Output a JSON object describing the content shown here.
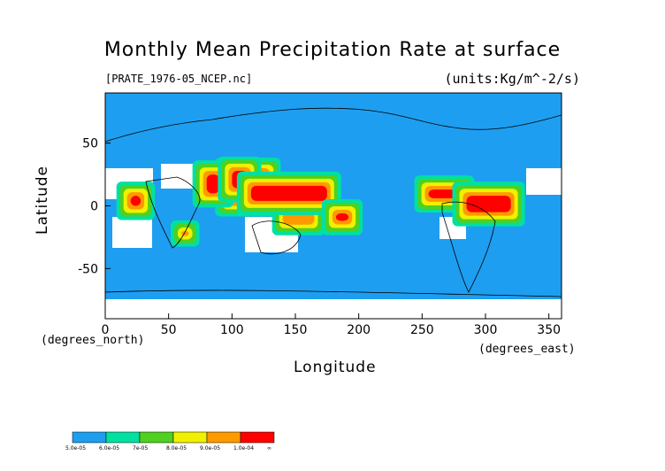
{
  "chart_data": {
    "type": "heatmap",
    "title": "Monthly Mean Precipitation Rate at surface",
    "subtitle": "[PRATE_1976-05_NCEP.nc]",
    "units": "(units:Kg/m^-2/s)",
    "xlabel": "Longitude",
    "ylabel": "Latitude",
    "x_unit_label": "(degrees_east)",
    "y_unit_label": "(degrees_north)",
    "xlim": [
      0,
      360
    ],
    "ylim": [
      -90,
      90
    ],
    "x_ticks": [
      0,
      50,
      100,
      150,
      200,
      250,
      300,
      350
    ],
    "y_ticks": [
      50,
      0,
      -50
    ],
    "x_tick_labels": [
      "0",
      "50",
      "100",
      "150",
      "200",
      "250",
      "300",
      "350"
    ],
    "y_tick_labels": [
      "50",
      "0",
      "-50"
    ],
    "colorbar": {
      "labels": [
        "5.0e-05",
        "6.0e-05",
        "7e-05",
        "8.0e-05",
        "9.0e-05",
        "1.0e-04",
        "∞"
      ],
      "colors": [
        "#1e9ef0",
        "#00e0a0",
        "#50d020",
        "#f0f000",
        "#ff9900",
        "#ff0000"
      ],
      "bounds": [
        5e-05,
        6e-05,
        7e-05,
        8e-05,
        9e-05,
        0.0001
      ]
    },
    "regions": [
      {
        "level": 5,
        "lon": [
          80,
          90
        ],
        "lat": [
          10,
          25
        ]
      },
      {
        "level": 5,
        "lon": [
          100,
          112
        ],
        "lat": [
          14,
          28
        ]
      },
      {
        "level": 5,
        "lon": [
          115,
          175
        ],
        "lat": [
          4,
          16
        ]
      },
      {
        "level": 5,
        "lon": [
          255,
          280
        ],
        "lat": [
          6,
          13
        ]
      },
      {
        "level": 5,
        "lon": [
          285,
          320
        ],
        "lat": [
          -5,
          8
        ]
      },
      {
        "level": 5,
        "lon": [
          182,
          192
        ],
        "lat": [
          -12,
          -6
        ]
      },
      {
        "level": 5,
        "lon": [
          20,
          28
        ],
        "lat": [
          0,
          8
        ]
      },
      {
        "level": 4,
        "lon": [
          95,
          130
        ],
        "lat": [
          0,
          30
        ]
      },
      {
        "level": 4,
        "lon": [
          140,
          165
        ],
        "lat": [
          -15,
          -5
        ]
      },
      {
        "level": 4,
        "lon": [
          60,
          66
        ],
        "lat": [
          -24,
          -20
        ]
      }
    ],
    "grid": false,
    "legend_placement": "bottom-left"
  }
}
